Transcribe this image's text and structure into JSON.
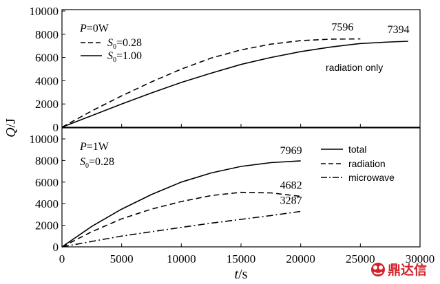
{
  "chart_data": [
    {
      "type": "line",
      "panel": "top",
      "parameter_label": {
        "symbol": "P",
        "value": "=0W"
      },
      "xlim": [
        0,
        30000
      ],
      "ylim": [
        0,
        10000
      ],
      "yticks": [
        "0",
        "2000",
        "4000",
        "6000",
        "8000",
        "10000"
      ],
      "annotation": "radiation only",
      "series": [
        {
          "name": "S0=0.28",
          "name_symbol": "S",
          "name_sub": "0",
          "name_value": "=0.28",
          "style": "dashed",
          "x": [
            0,
            2500,
            5000,
            7500,
            10000,
            12500,
            15000,
            17500,
            20000,
            22500,
            25000
          ],
          "y": [
            0,
            1400,
            2700,
            3900,
            5000,
            5950,
            6650,
            7150,
            7450,
            7580,
            7596
          ],
          "end_label": "7596"
        },
        {
          "name": "S0=1.00",
          "name_symbol": "S",
          "name_sub": "0",
          "name_value": "=1.00",
          "style": "solid",
          "x": [
            0,
            2500,
            5000,
            7500,
            10000,
            12500,
            15000,
            17500,
            20000,
            22500,
            25000,
            27500,
            29000
          ],
          "y": [
            0,
            1000,
            2000,
            2950,
            3850,
            4650,
            5400,
            6000,
            6500,
            6900,
            7200,
            7340,
            7394
          ],
          "end_label": "7394"
        }
      ]
    },
    {
      "type": "line",
      "panel": "bottom",
      "parameter_label": {
        "symbol": "P",
        "value": "=1W"
      },
      "s_label": {
        "symbol": "S",
        "sub": "0",
        "value": "=0.28"
      },
      "xlim": [
        0,
        30000
      ],
      "ylim": [
        0,
        10000
      ],
      "yticks": [
        "0",
        "2000",
        "4000",
        "6000",
        "8000",
        "10000"
      ],
      "xticks": [
        "0",
        "5000",
        "10000",
        "15000",
        "20000",
        "25000",
        "30000"
      ],
      "series": [
        {
          "name": "total",
          "style": "solid",
          "x": [
            0,
            2500,
            5000,
            7500,
            10000,
            12500,
            15000,
            17500,
            20000
          ],
          "y": [
            0,
            1900,
            3500,
            4850,
            6000,
            6850,
            7450,
            7800,
            7969
          ],
          "end_label": "7969"
        },
        {
          "name": "radiation",
          "style": "dashed",
          "x": [
            0,
            2500,
            5000,
            7500,
            10000,
            12500,
            15000,
            17500,
            20000
          ],
          "y": [
            0,
            1400,
            2600,
            3500,
            4200,
            4750,
            5050,
            5000,
            4682
          ],
          "end_label": "4682"
        },
        {
          "name": "microwave",
          "style": "dashdot",
          "x": [
            0,
            2500,
            5000,
            7500,
            10000,
            12500,
            15000,
            17500,
            20000
          ],
          "y": [
            0,
            500,
            1000,
            1400,
            1800,
            2200,
            2550,
            2900,
            3287
          ],
          "end_label": "3287"
        }
      ]
    }
  ],
  "axes": {
    "ylabel_symbol": "Q",
    "ylabel_unit": "/J",
    "xlabel_symbol": "t",
    "xlabel_unit": "/s"
  },
  "watermark": "鼎达信",
  "colors": {
    "line": "#000000",
    "watermark": "#d4212a"
  }
}
